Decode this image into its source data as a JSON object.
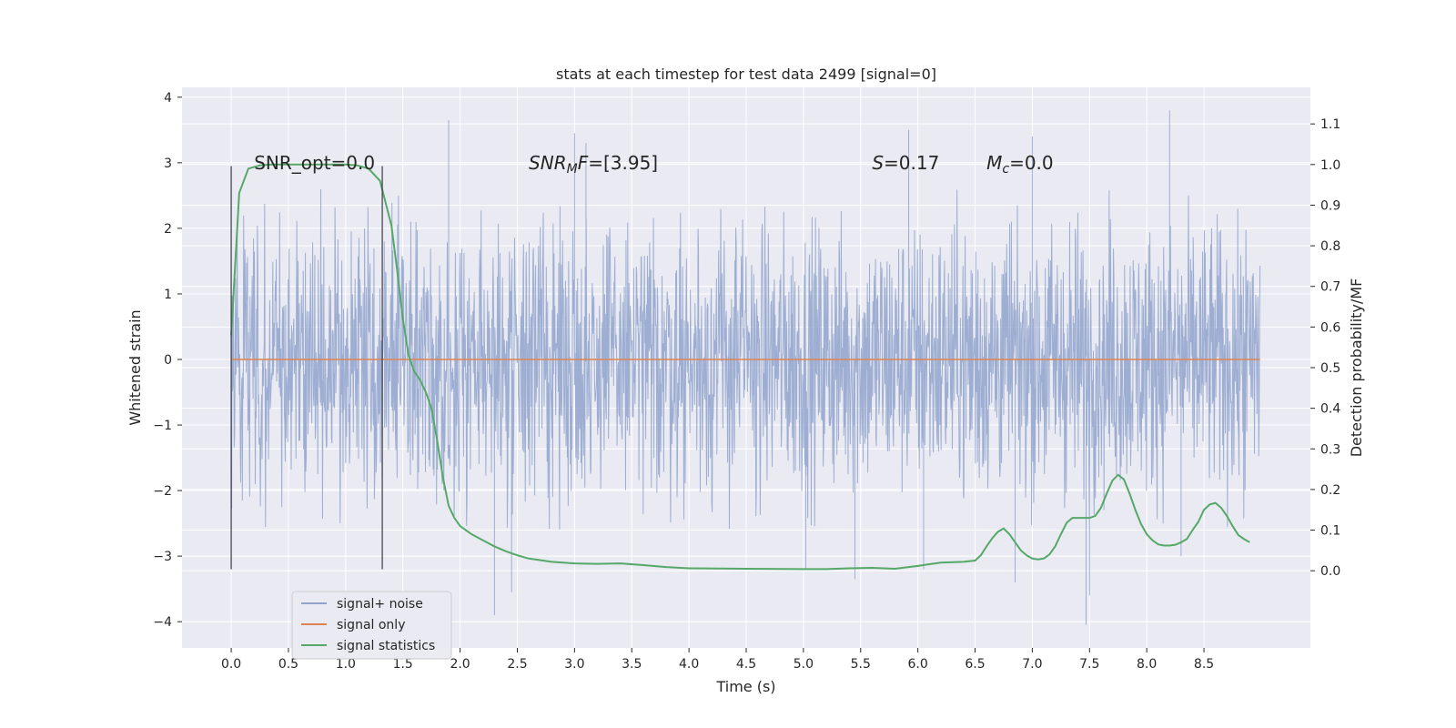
{
  "chart_data": {
    "type": "line",
    "title": "stats at each timestep for test data 2499 [signal=0]",
    "xlabel": "Time (s)",
    "ylabel": "Whitened strain",
    "y2label": "Detection probability/MF",
    "xlim": [
      -0.43,
      9.43
    ],
    "ylim": [
      -4.4,
      4.15
    ],
    "y2lim": [
      -0.19,
      1.19
    ],
    "x_ticks": [
      "0.0",
      "0.5",
      "1.0",
      "1.5",
      "2.0",
      "2.5",
      "3.0",
      "3.5",
      "4.0",
      "4.5",
      "5.0",
      "5.5",
      "6.0",
      "6.5",
      "7.0",
      "7.5",
      "8.0",
      "8.5"
    ],
    "y_ticks": [
      "4",
      "3",
      "2",
      "1",
      "0",
      "−1",
      "−2",
      "−3",
      "−4"
    ],
    "y2_ticks": [
      "1.1",
      "1.0",
      "0.9",
      "0.8",
      "0.7",
      "0.6",
      "0.5",
      "0.4",
      "0.3",
      "0.2",
      "0.1",
      "0.0"
    ],
    "grid": true,
    "legend_position": "lower-left",
    "vlines": [
      0.0,
      1.32
    ],
    "annotations": [
      {
        "text": "SNR_opt=0.0",
        "x": 0.2
      },
      {
        "text": "SNR_MF=[3.95]",
        "x": 2.6,
        "display": "SNR",
        "display_sub": "M",
        "display_tail": "F=[3.95]"
      },
      {
        "text": "S=0.17",
        "x": 5.6,
        "display": "S",
        "display_tail": "=0.17"
      },
      {
        "text": "M_c=0.0",
        "x": 6.6,
        "display": "M",
        "display_sub": "c",
        "display_tail": "=0.0"
      }
    ],
    "annotation_y": 3.0,
    "series": [
      {
        "name": "signal+ noise",
        "color": "#8fa3cc",
        "axis": "left",
        "x_range": [
          0.0,
          8.99
        ],
        "amplitude_note": "noise",
        "peaks": [
          {
            "x": 1.9,
            "y": 3.65
          },
          {
            "x": 2.3,
            "y": -3.9
          },
          {
            "x": 2.45,
            "y": -3.55
          },
          {
            "x": 3.0,
            "y": 3.45
          },
          {
            "x": 3.1,
            "y": 3.3
          },
          {
            "x": 5.02,
            "y": -3.2
          },
          {
            "x": 5.45,
            "y": -3.35
          },
          {
            "x": 5.92,
            "y": 3.5
          },
          {
            "x": 6.05,
            "y": -3.2
          },
          {
            "x": 6.85,
            "y": -3.4
          },
          {
            "x": 7.0,
            "y": 3.4
          },
          {
            "x": 7.47,
            "y": -4.05
          },
          {
            "x": 7.5,
            "y": -3.6
          },
          {
            "x": 8.2,
            "y": 3.8
          },
          {
            "x": 8.3,
            "y": -3.0
          }
        ]
      },
      {
        "name": "signal only",
        "color": "#dd8452",
        "axis": "left",
        "x": [
          0.0,
          8.99
        ],
        "values": [
          0.0,
          0.0
        ]
      },
      {
        "name": "signal statistics",
        "color": "#55a868",
        "axis": "right",
        "x": [
          0.0,
          0.07,
          0.15,
          0.25,
          0.35,
          0.5,
          0.7,
          0.9,
          1.0,
          1.1,
          1.2,
          1.3,
          1.4,
          1.45,
          1.5,
          1.55,
          1.6,
          1.65,
          1.7,
          1.75,
          1.8,
          1.85,
          1.9,
          1.95,
          2.0,
          2.05,
          2.1,
          2.2,
          2.3,
          2.4,
          2.5,
          2.6,
          2.8,
          3.0,
          3.2,
          3.4,
          3.6,
          3.8,
          4.0,
          4.5,
          5.0,
          5.2,
          5.4,
          5.6,
          5.8,
          6.0,
          6.2,
          6.4,
          6.5,
          6.55,
          6.6,
          6.65,
          6.7,
          6.75,
          6.8,
          6.85,
          6.9,
          6.95,
          7.0,
          7.05,
          7.1,
          7.15,
          7.2,
          7.25,
          7.3,
          7.35,
          7.4,
          7.45,
          7.5,
          7.55,
          7.6,
          7.65,
          7.7,
          7.75,
          7.8,
          7.85,
          7.9,
          7.95,
          8.0,
          8.05,
          8.1,
          8.15,
          8.2,
          8.25,
          8.3,
          8.35,
          8.4,
          8.45,
          8.5,
          8.55,
          8.6,
          8.65,
          8.7,
          8.75,
          8.8,
          8.85,
          8.9
        ],
        "values": [
          0.58,
          0.93,
          0.99,
          0.998,
          1.0,
          1.0,
          1.0,
          1.0,
          1.0,
          0.998,
          0.99,
          0.96,
          0.85,
          0.74,
          0.62,
          0.53,
          0.49,
          0.47,
          0.44,
          0.4,
          0.32,
          0.23,
          0.16,
          0.13,
          0.11,
          0.1,
          0.09,
          0.075,
          0.06,
          0.048,
          0.038,
          0.03,
          0.022,
          0.018,
          0.017,
          0.018,
          0.014,
          0.009,
          0.006,
          0.005,
          0.004,
          0.004,
          0.006,
          0.007,
          0.005,
          0.012,
          0.02,
          0.022,
          0.025,
          0.038,
          0.06,
          0.08,
          0.096,
          0.104,
          0.09,
          0.07,
          0.05,
          0.038,
          0.03,
          0.028,
          0.03,
          0.04,
          0.06,
          0.09,
          0.118,
          0.13,
          0.13,
          0.13,
          0.13,
          0.135,
          0.155,
          0.19,
          0.222,
          0.236,
          0.225,
          0.19,
          0.15,
          0.115,
          0.09,
          0.075,
          0.065,
          0.062,
          0.062,
          0.064,
          0.07,
          0.078,
          0.1,
          0.12,
          0.15,
          0.163,
          0.167,
          0.155,
          0.135,
          0.11,
          0.088,
          0.078,
          0.07
        ]
      }
    ]
  }
}
